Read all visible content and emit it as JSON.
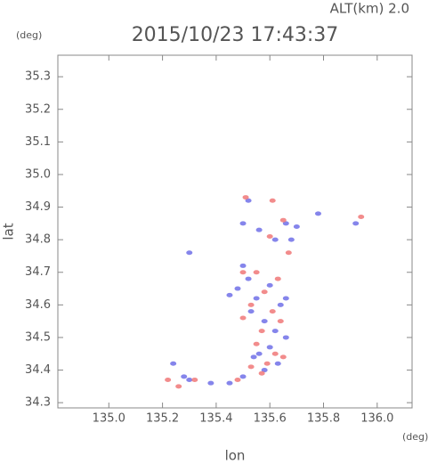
{
  "chart_data": {
    "type": "scatter",
    "title": "2015/10/23 17:43:37",
    "subtitle": "ALT(km) 2.0",
    "x_label": "lon",
    "y_label": "lat",
    "x_unit": "(deg)",
    "y_unit": "(deg)",
    "xlim": [
      134.81,
      136.13
    ],
    "ylim": [
      34.284,
      35.366
    ],
    "xticks": [
      {
        "value": 135.0,
        "label": "135.0"
      },
      135.2,
      135.4,
      135.6,
      135.8,
      {
        "value": 136.0,
        "label": "136.0"
      }
    ],
    "yticks": [
      34.3,
      34.4,
      34.5,
      34.6,
      34.7,
      34.8,
      34.9,
      {
        "value": 35.0,
        "label": "35.0"
      },
      35.1,
      35.2,
      35.3
    ],
    "series": [
      {
        "color": "#7070e8",
        "x": [
          135.52,
          135.5,
          135.56,
          135.62,
          135.66,
          135.7,
          135.78,
          135.92,
          135.3,
          135.5,
          135.48,
          135.52,
          135.55,
          135.6,
          135.64,
          135.58,
          135.53,
          135.62,
          135.6,
          135.56,
          135.63,
          135.58,
          135.54,
          135.24,
          135.28,
          135.3,
          135.38,
          135.45,
          135.5,
          135.66,
          135.66,
          135.45,
          135.68
        ],
        "values": [
          34.92,
          34.85,
          34.83,
          34.8,
          34.85,
          34.84,
          34.88,
          34.85,
          34.76,
          34.72,
          34.65,
          34.68,
          34.62,
          34.66,
          34.6,
          34.55,
          34.58,
          34.52,
          34.47,
          34.45,
          34.42,
          34.4,
          34.44,
          34.42,
          34.38,
          34.37,
          34.36,
          34.36,
          34.38,
          34.5,
          34.62,
          34.63,
          34.8
        ]
      },
      {
        "color": "#f07878",
        "x": [
          135.51,
          135.61,
          135.65,
          135.6,
          135.67,
          135.94,
          135.55,
          135.5,
          135.58,
          135.63,
          135.53,
          135.61,
          135.57,
          135.55,
          135.62,
          135.59,
          135.53,
          135.65,
          135.22,
          135.26,
          135.32,
          135.48,
          135.57,
          135.64,
          135.5
        ],
        "values": [
          34.93,
          34.92,
          34.86,
          34.81,
          34.76,
          34.87,
          34.7,
          34.7,
          34.64,
          34.68,
          34.6,
          34.58,
          34.52,
          34.48,
          34.45,
          34.42,
          34.41,
          34.44,
          34.37,
          34.35,
          34.37,
          34.37,
          34.39,
          34.55,
          34.56
        ]
      }
    ]
  }
}
